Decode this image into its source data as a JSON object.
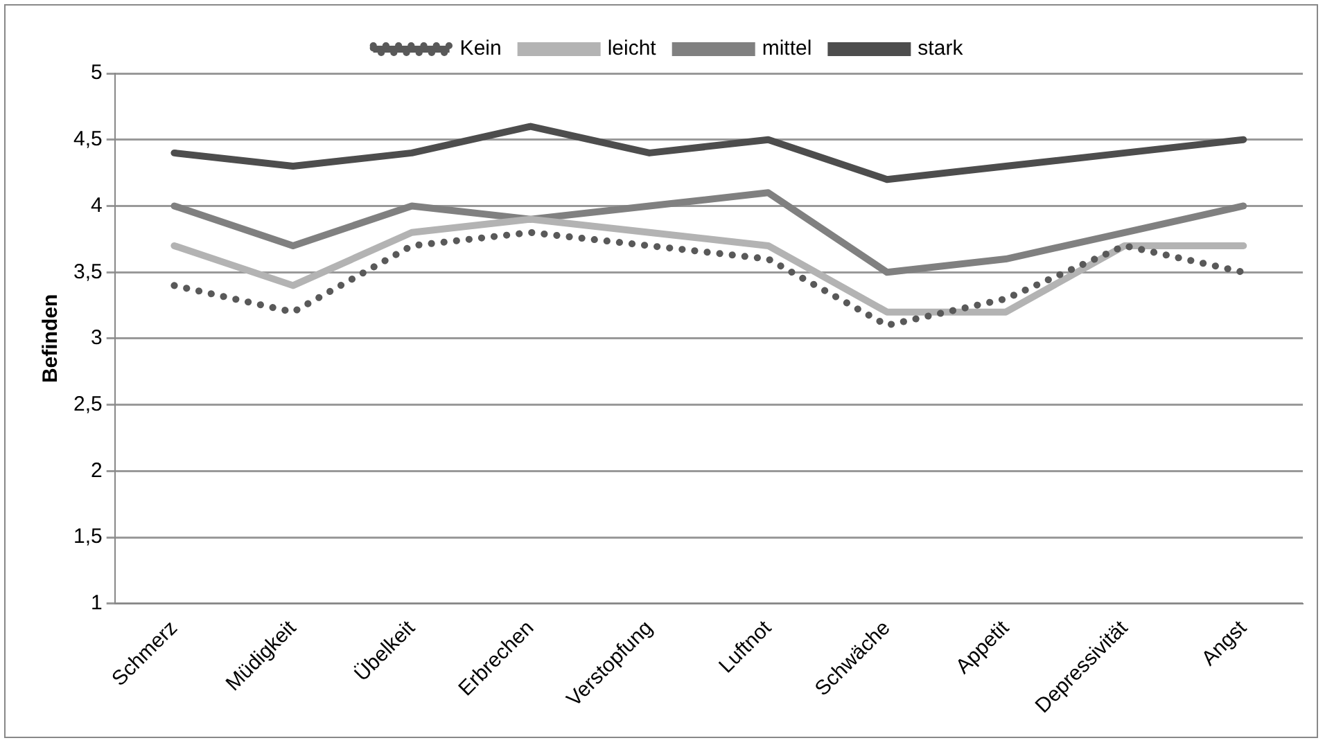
{
  "chart_data": {
    "type": "line",
    "ylabel": "Befinden",
    "categories": [
      "Schmerz",
      "Müdigkeit",
      "Übelkeit",
      "Erbrechen",
      "Verstopfung",
      "Luftnot",
      "Schwäche",
      "Appetit",
      "Depressivität",
      "Angst"
    ],
    "series": [
      {
        "name": "Kein",
        "color": "#595959",
        "line_style": "dotted",
        "values": [
          3.4,
          3.2,
          3.7,
          3.8,
          3.7,
          3.6,
          3.1,
          3.3,
          3.7,
          3.5
        ]
      },
      {
        "name": "leicht",
        "color": "#b3b3b3",
        "line_style": "solid",
        "values": [
          3.7,
          3.4,
          3.8,
          3.9,
          3.8,
          3.7,
          3.2,
          3.2,
          3.7,
          3.7
        ]
      },
      {
        "name": "mittel",
        "color": "#808080",
        "line_style": "solid",
        "values": [
          4.0,
          3.7,
          4.0,
          3.9,
          4.0,
          4.1,
          3.5,
          3.6,
          3.8,
          4.0
        ]
      },
      {
        "name": "stark",
        "color": "#4d4d4d",
        "line_style": "solid",
        "values": [
          4.4,
          4.3,
          4.4,
          4.6,
          4.4,
          4.5,
          4.2,
          4.3,
          4.4,
          4.5
        ]
      }
    ],
    "ylim": [
      1,
      5
    ],
    "yticks": [
      1,
      {
        "value": 1.5,
        "label": "1,5"
      },
      2,
      {
        "value": 2.5,
        "label": "2,5"
      },
      3,
      {
        "value": 3.5,
        "label": "3,5"
      },
      4,
      {
        "value": 4.5,
        "label": "4,5"
      },
      5
    ],
    "grid": "y",
    "legend": "top",
    "marker": "none"
  }
}
